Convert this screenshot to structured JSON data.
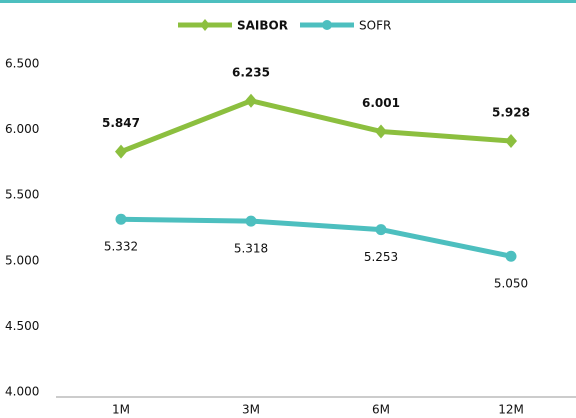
{
  "chart_data": {
    "type": "line",
    "categories": [
      "1M",
      "3M",
      "6M",
      "12M"
    ],
    "series": [
      {
        "name": "SAIBOR",
        "color": "#8cbf3f",
        "values": [
          5.847,
          6.235,
          6.001,
          5.928
        ]
      },
      {
        "name": "SOFR",
        "color": "#4dbfbf",
        "values": [
          5.332,
          5.318,
          5.253,
          5.05
        ],
        "value_labels": [
          "5.332",
          "5.318",
          "5.253",
          "5.050"
        ]
      }
    ],
    "ylim": [
      4,
      6.5
    ],
    "yticks": [
      {
        "value": 4,
        "label": "4.000"
      },
      {
        "value": 4.5,
        "label": "4.500"
      },
      {
        "value": 5,
        "label": "5.000"
      },
      {
        "value": 5.5,
        "label": "5.500"
      },
      {
        "value": 6,
        "label": "6.000"
      },
      {
        "value": 6.5,
        "label": "6.500"
      }
    ],
    "grid": false,
    "legend": "top"
  }
}
